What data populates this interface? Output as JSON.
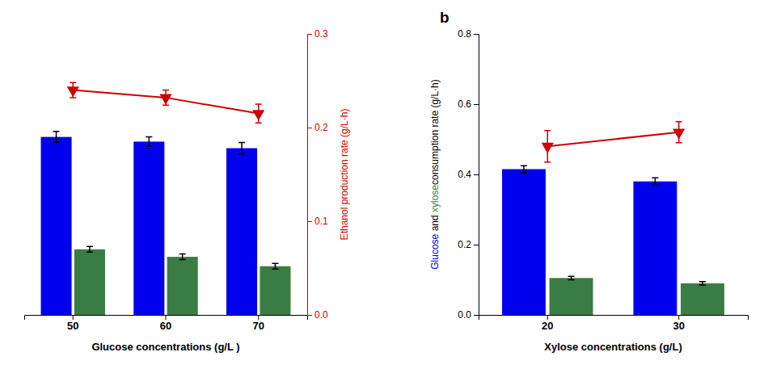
{
  "chart_data": [
    {
      "type": "bar",
      "categories": [
        "50",
        "60",
        "70"
      ],
      "x_label": "Glucose concentrations (g/L )",
      "y2_label": "Ethanol production rate (g/L·h)",
      "y2lim": [
        0.0,
        0.3
      ],
      "y2ticks": [
        {
          "value": 0.0,
          "label": "0.0"
        },
        0.1,
        0.2,
        0.3
      ],
      "series": [
        {
          "color": "#0000ee",
          "values": [
            0.19,
            0.185,
            0.178
          ],
          "errors": [
            0.006,
            0.005,
            0.006
          ],
          "axis": "y2"
        },
        {
          "color": "#3a7d44",
          "values": [
            0.07,
            0.062,
            0.052
          ],
          "errors": [
            0.003,
            0.003,
            0.003
          ],
          "axis": "y2"
        },
        {
          "type": "line",
          "color": "#cc0000",
          "marker": "triangle-down",
          "values": [
            0.24,
            0.232,
            0.215
          ],
          "errors": [
            0.008,
            0.008,
            0.01
          ],
          "axis": "y2"
        }
      ]
    },
    {
      "type": "bar",
      "categories": [
        "20",
        "30"
      ],
      "x_label": "Xylose concentrations (g/L)",
      "y_label": [
        {
          "text": "Glucose",
          "color": "#0000ee"
        },
        {
          "text": " and ",
          "color": "#000000"
        },
        {
          "text": "xylose",
          "color": "#3a7d44"
        },
        {
          "text": "consumption rate (g/L·h)",
          "color": "#000000"
        }
      ],
      "annotations": [
        "b"
      ],
      "ylim": [
        0.0,
        0.8
      ],
      "yticks": [
        {
          "value": 0.0,
          "label": "0.0"
        },
        0.2,
        0.4,
        0.6,
        0.8
      ],
      "series": [
        {
          "color": "#0000ee",
          "values": [
            0.415,
            0.38
          ],
          "errors": [
            0.01,
            0.01
          ]
        },
        {
          "color": "#3a7d44",
          "values": [
            0.105,
            0.09
          ],
          "errors": [
            0.005,
            0.005
          ]
        },
        {
          "type": "line",
          "color": "#cc0000",
          "marker": "triangle-down",
          "values": [
            0.48,
            0.52
          ],
          "errors": [
            0.045,
            0.03
          ]
        }
      ]
    }
  ]
}
